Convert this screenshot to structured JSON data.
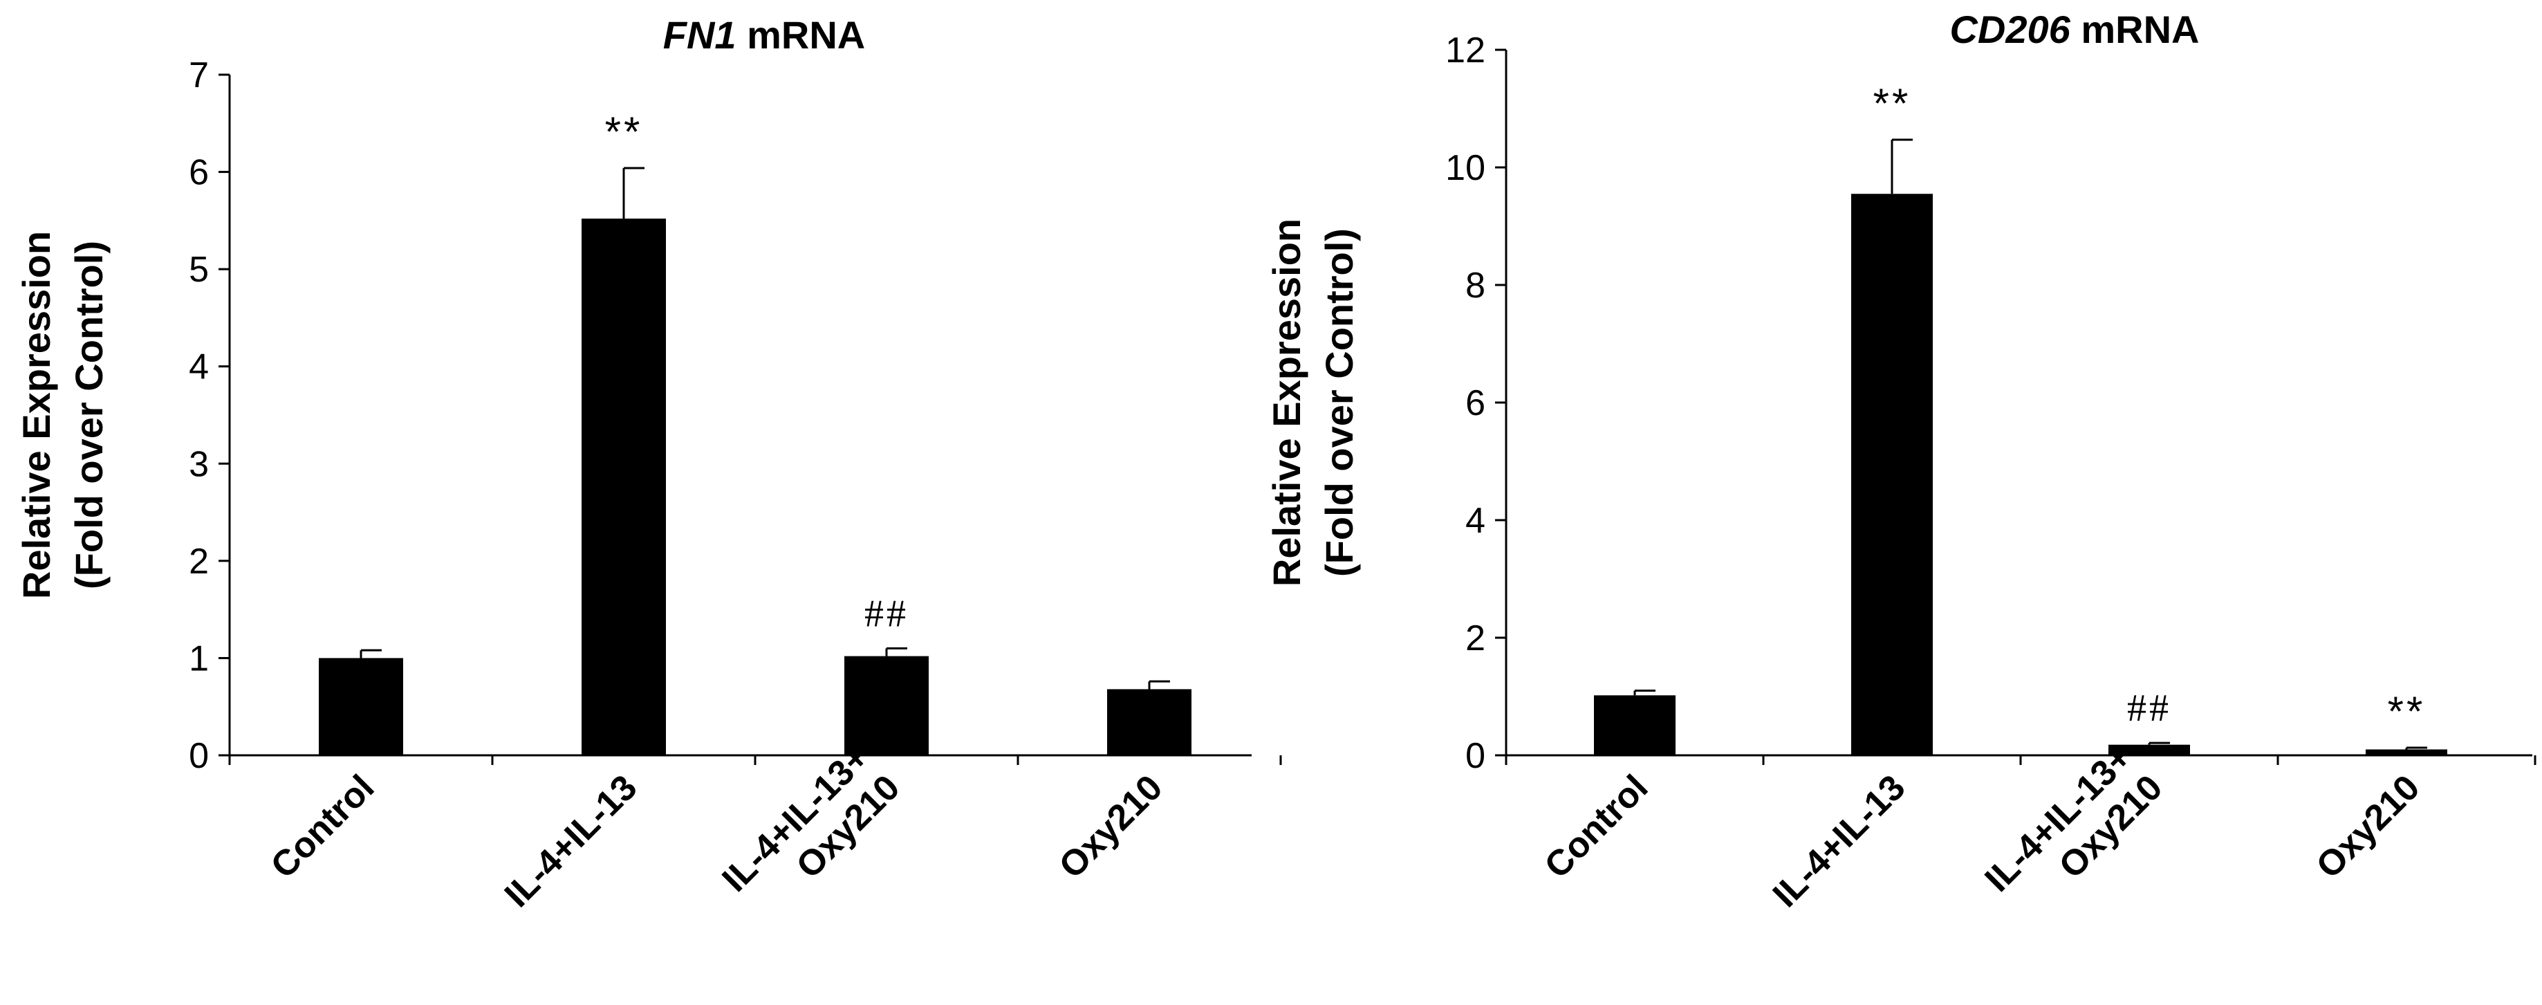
{
  "chart_data": [
    {
      "type": "bar",
      "title_italic": "FN1",
      "title_rest": " mRNA",
      "ylabel_line1": "Relative Expression",
      "ylabel_line2": "(Fold over Control)",
      "ylim": [
        0,
        7
      ],
      "yticks": [
        "0",
        "1",
        "2",
        "3",
        "4",
        "5",
        "6",
        "7"
      ],
      "categories": [
        {
          "lines": [
            "Control"
          ]
        },
        {
          "lines": [
            "IL-4+IL-13"
          ]
        },
        {
          "lines": [
            "IL-4+IL-13+",
            "Oxy210"
          ]
        },
        {
          "lines": [
            "Oxy210"
          ]
        }
      ],
      "values": [
        1.0,
        5.52,
        1.02,
        0.68
      ],
      "errors": [
        0.08,
        0.52,
        0.08,
        0.08
      ],
      "annotations": [
        "",
        "**",
        "##",
        ""
      ],
      "bar_color": "#000000"
    },
    {
      "type": "bar",
      "title_italic": "CD206",
      "title_rest": " mRNA",
      "ylabel_line1": "Relative Expression",
      "ylabel_line2": "(Fold over Control)",
      "ylim": [
        0,
        12
      ],
      "yticks": [
        "0",
        "2",
        "4",
        "6",
        "8",
        "10",
        "12"
      ],
      "categories": [
        {
          "lines": [
            "Control"
          ]
        },
        {
          "lines": [
            "IL-4+IL-13"
          ]
        },
        {
          "lines": [
            "IL-4+IL-13+",
            "Oxy210"
          ]
        },
        {
          "lines": [
            "Oxy210"
          ]
        }
      ],
      "values": [
        1.02,
        9.55,
        0.18,
        0.1
      ],
      "errors": [
        0.08,
        0.92,
        0.03,
        0.03
      ],
      "annotations": [
        "",
        "**",
        "##",
        "**"
      ],
      "bar_color": "#000000"
    }
  ]
}
